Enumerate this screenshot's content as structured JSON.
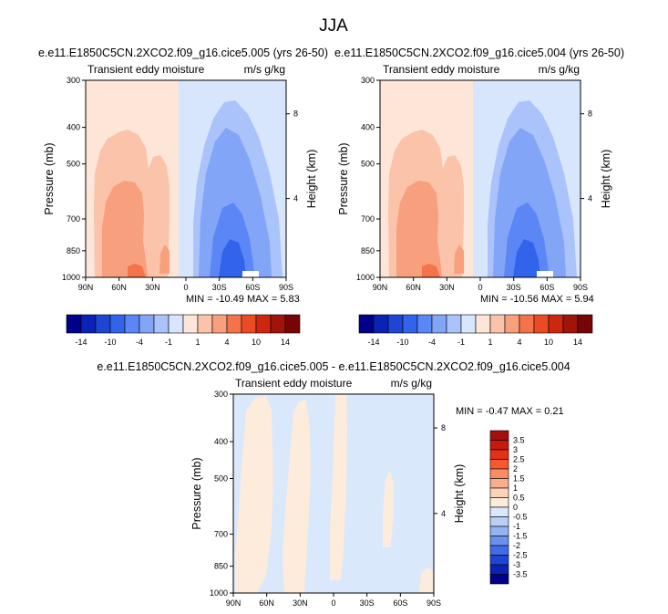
{
  "figure_title": "JJA",
  "chart_data": [
    {
      "type": "heatmap",
      "title": "e.e11.E1850C5CN.2XCO2.f09_g16.cice5.005 (yrs 26-50)",
      "subtitle_left": "Transient eddy moisture",
      "subtitle_right": "m/s g/kg",
      "ylabel": "Pressure (mb)",
      "ylabel_right": "Height (km)",
      "x_ticks": [
        "90N",
        "60N",
        "30N",
        "0",
        "30S",
        "60S",
        "90S"
      ],
      "y_ticks": [
        "300",
        "400",
        "500",
        "700",
        "850",
        "1000"
      ],
      "y_ticks_right": [
        "8",
        "4"
      ],
      "ylim": [
        1000,
        300
      ],
      "min_label": "MIN =",
      "min_value": "-10.49",
      "max_label": "MAX =",
      "max_value": "5.83"
    },
    {
      "type": "heatmap",
      "title": "e.e11.E1850C5CN.2XCO2.f09_g16.cice5.004 (yrs 26-50)",
      "subtitle_left": "Transient eddy moisture",
      "subtitle_right": "m/s g/kg",
      "ylabel": "Pressure (mb)",
      "ylabel_right": "Height (km)",
      "x_ticks": [
        "90N",
        "60N",
        "30N",
        "0",
        "30S",
        "60S",
        "90S"
      ],
      "y_ticks": [
        "300",
        "400",
        "500",
        "700",
        "850",
        "1000"
      ],
      "y_ticks_right": [
        "8",
        "4"
      ],
      "ylim": [
        1000,
        300
      ],
      "min_label": "MIN =",
      "min_value": "-10.56",
      "max_label": "MAX =",
      "max_value": "5.94"
    },
    {
      "type": "heatmap",
      "title": "e.e11.E1850C5CN.2XCO2.f09_g16.cice5.005 - e.e11.E1850C5CN.2XCO2.f09_g16.cice5.004",
      "subtitle_left": "Transient eddy moisture",
      "subtitle_right": "m/s g/kg",
      "ylabel": "Pressure (mb)",
      "ylabel_right": "Height (km)",
      "x_ticks": [
        "90N",
        "60N",
        "30N",
        "0",
        "30S",
        "60S",
        "90S"
      ],
      "y_ticks": [
        "300",
        "400",
        "500",
        "700",
        "850",
        "1000"
      ],
      "y_ticks_right": [
        "8",
        "4"
      ],
      "ylim": [
        1000,
        300
      ],
      "min_label": "MIN =",
      "min_value": "-0.47",
      "max_label": "MAX =",
      "max_value": "0.21"
    }
  ],
  "colorbar_main": {
    "colors": [
      "#00008b",
      "#0a23b4",
      "#1e46d2",
      "#3264eb",
      "#5a87f5",
      "#82a5f8",
      "#aac3fa",
      "#d7e6fd",
      "#fde6d7",
      "#fac3aa",
      "#f89f7d",
      "#f5734b",
      "#eb4b23",
      "#cd280f",
      "#a0140a",
      "#780505"
    ],
    "labels": [
      "-14",
      "-10",
      "-4",
      "-1",
      "1",
      "4",
      "10",
      "14"
    ]
  },
  "colorbar_diff": {
    "colors": [
      "#a50f0f",
      "#c8190f",
      "#e13214",
      "#f55a2d",
      "#f88c64",
      "#faaf8c",
      "#fcd2b9",
      "#fdebdc",
      "#dae8fb",
      "#b9cff8",
      "#94b3f3",
      "#6b91ee",
      "#426be6",
      "#1e46d2",
      "#0a23b4",
      "#00008b"
    ],
    "labels": [
      "3.5",
      "3",
      "2.5",
      "2",
      "1.5",
      "1",
      "0.5",
      "0",
      "-0.5",
      "-1",
      "-1.5",
      "-2",
      "-2.5",
      "-3",
      "-3.5"
    ]
  }
}
